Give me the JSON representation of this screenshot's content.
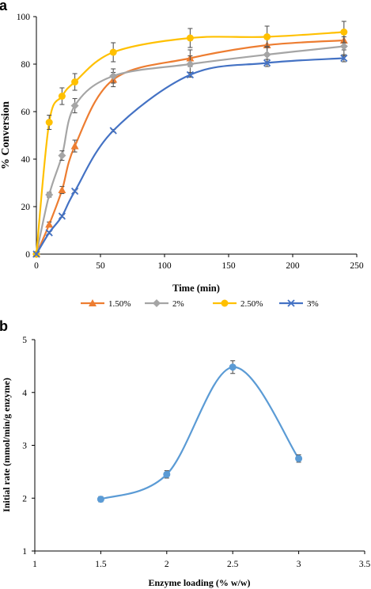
{
  "chart_data": [
    {
      "panel": "a",
      "type": "line",
      "xlabel": "Time (min)",
      "ylabel": "% Conversion",
      "xlim": [
        0,
        250
      ],
      "ylim": [
        0,
        100
      ],
      "xticks": [
        0,
        50,
        100,
        150,
        200,
        250
      ],
      "yticks": [
        0,
        20,
        40,
        60,
        80,
        100
      ],
      "grid": false,
      "legend_position": "bottom",
      "x": [
        0,
        10,
        20,
        30,
        60,
        120,
        180,
        240
      ],
      "series": [
        {
          "name": "1.50%",
          "color": "#ed7d31",
          "marker": "triangle",
          "values": [
            0,
            12.5,
            27.0,
            45.5,
            73.5,
            82.5,
            88.0,
            90.0
          ],
          "errors": [
            0,
            1,
            1.5,
            2.5,
            3,
            3.5,
            4,
            4
          ]
        },
        {
          "name": "2%",
          "color": "#a5a5a5",
          "marker": "diamond",
          "values": [
            0,
            25.0,
            41.5,
            62.5,
            75.0,
            80.0,
            84.0,
            87.5
          ],
          "errors": [
            0,
            1,
            2,
            3,
            3,
            3.5,
            3.5,
            4
          ]
        },
        {
          "name": "2.50%",
          "color": "#ffc000",
          "marker": "circle",
          "values": [
            0,
            55.5,
            66.5,
            72.5,
            85.0,
            91.0,
            91.5,
            93.5
          ],
          "errors": [
            0,
            3,
            3.5,
            3.5,
            4,
            4,
            4.5,
            4.5
          ]
        },
        {
          "name": "3%",
          "color": "#4472c4",
          "marker": "x",
          "values": [
            0,
            9.0,
            16.0,
            26.5,
            52.0,
            75.5,
            80.5,
            82.5
          ],
          "errors": [
            0,
            0.5,
            0.5,
            0.5,
            0.5,
            1,
            1.5,
            1.5
          ]
        }
      ]
    },
    {
      "panel": "b",
      "type": "line",
      "xlabel": "Enzyme loading (% w/w)",
      "ylabel": "Initial rate (mmol/min/g enzyme)",
      "xlim": [
        1,
        3.5
      ],
      "ylim": [
        1,
        5
      ],
      "xticks": [
        1,
        1.5,
        2,
        2.5,
        3,
        3.5
      ],
      "yticks": [
        1,
        2,
        3,
        4,
        5
      ],
      "grid": false,
      "series": [
        {
          "color": "#5b9bd5",
          "marker": "circle",
          "x": [
            1.5,
            2,
            2.5,
            3
          ],
          "values": [
            1.98,
            2.45,
            4.48,
            2.75
          ],
          "errors": [
            0.05,
            0.07,
            0.12,
            0.07
          ]
        }
      ]
    }
  ]
}
